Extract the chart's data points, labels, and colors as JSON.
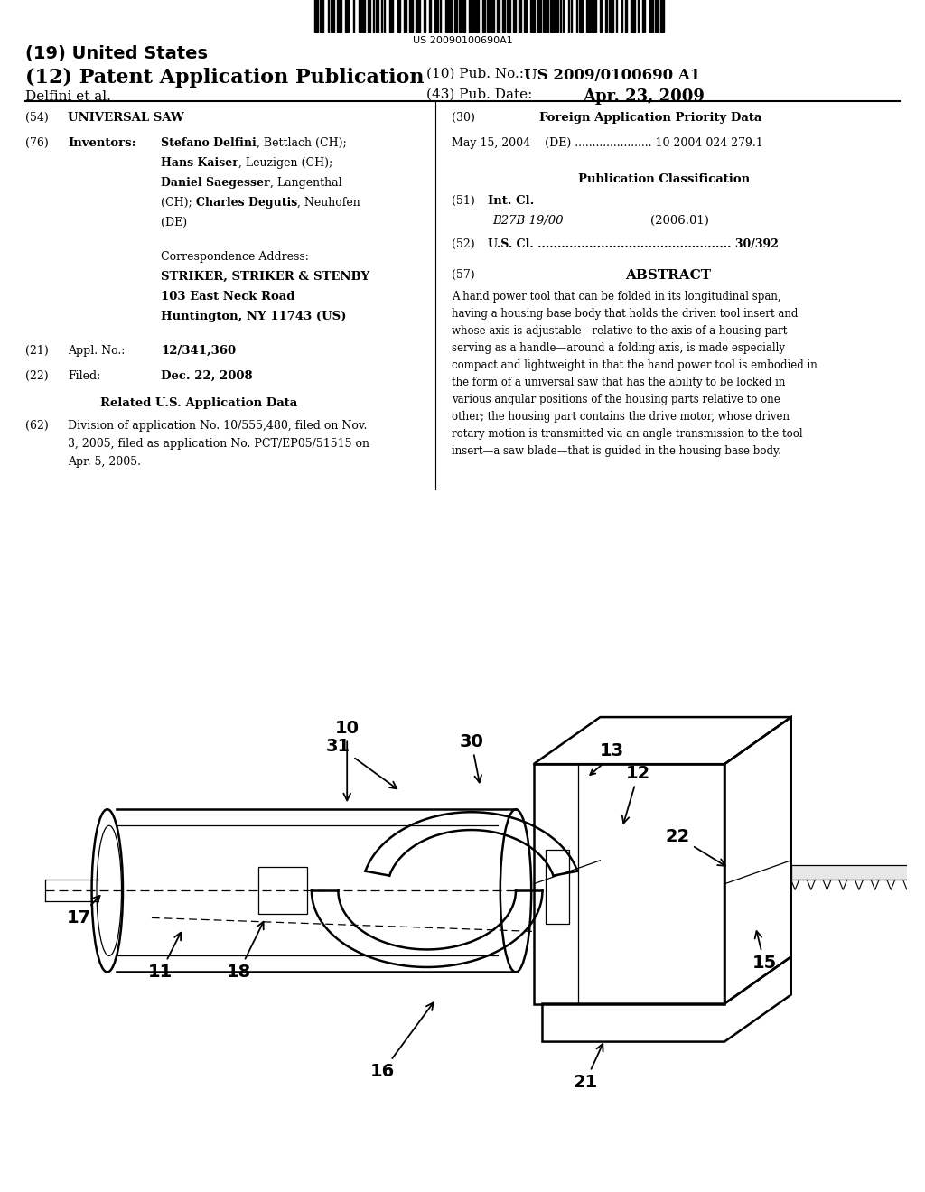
{
  "bg_color": "#ffffff",
  "barcode_text": "US 20090100690A1",
  "title_19": "(19) United States",
  "title_12": "(12) Patent Application Publication",
  "pub_no_label": "(10) Pub. No.:",
  "pub_no_value": "US 2009/0100690 A1",
  "pub_date_label": "(43) Pub. Date:",
  "pub_date_value": "Apr. 23, 2009",
  "inventor_label": "Delfini et al.",
  "section_54_label": "(54)",
  "section_54_title": "UNIVERSAL SAW",
  "section_76_label": "(76)",
  "section_76_title": "Inventors:",
  "corr_address_label": "Correspondence Address:",
  "corr_address_line1": "STRIKER, STRIKER & STENBY",
  "corr_address_line2": "103 East Neck Road",
  "corr_address_line3": "Huntington, NY 11743 (US)",
  "section_21_label": "(21)",
  "section_21_title": "Appl. No.:",
  "section_21_value": "12/341,360",
  "section_22_label": "(22)",
  "section_22_title": "Filed:",
  "section_22_value": "Dec. 22, 2008",
  "related_us_title": "Related U.S. Application Data",
  "section_62_label": "(62)",
  "section_62_text": "Division of application No. 10/555,480, filed on Nov.\n3, 2005, filed as application No. PCT/EP05/51515 on\nApr. 5, 2005.",
  "section_30_label": "(30)",
  "section_30_title": "Foreign Application Priority Data",
  "foreign_app_text": "May 15, 2004    (DE) ...................... 10 2004 024 279.1",
  "pub_class_title": "Publication Classification",
  "section_51_label": "(51)",
  "section_51_title": "Int. Cl.",
  "section_51_class": "B27B 19/00",
  "section_51_year": "(2006.01)",
  "section_52_label": "(52)",
  "section_52_title": "U.S. Cl.",
  "section_52_dots": ".................................................",
  "section_52_value": "30/392",
  "section_57_label": "(57)",
  "section_57_title": "ABSTRACT",
  "abstract_text": "A hand power tool that can be folded in its longitudinal span, having a housing base body that holds the driven tool insert and whose axis is adjustable—relative to the axis of a housing part serving as a handle—around a folding axis, is made especially compact and lightweight in that the hand power tool is embodied in the form of a universal saw that has the ability to be locked in various angular positions of the housing parts relative to one other; the housing part contains the drive motor, whose driven rotary motion is transmitted via an angle transmission to the tool insert—a saw blade—that is guided in the housing base body."
}
